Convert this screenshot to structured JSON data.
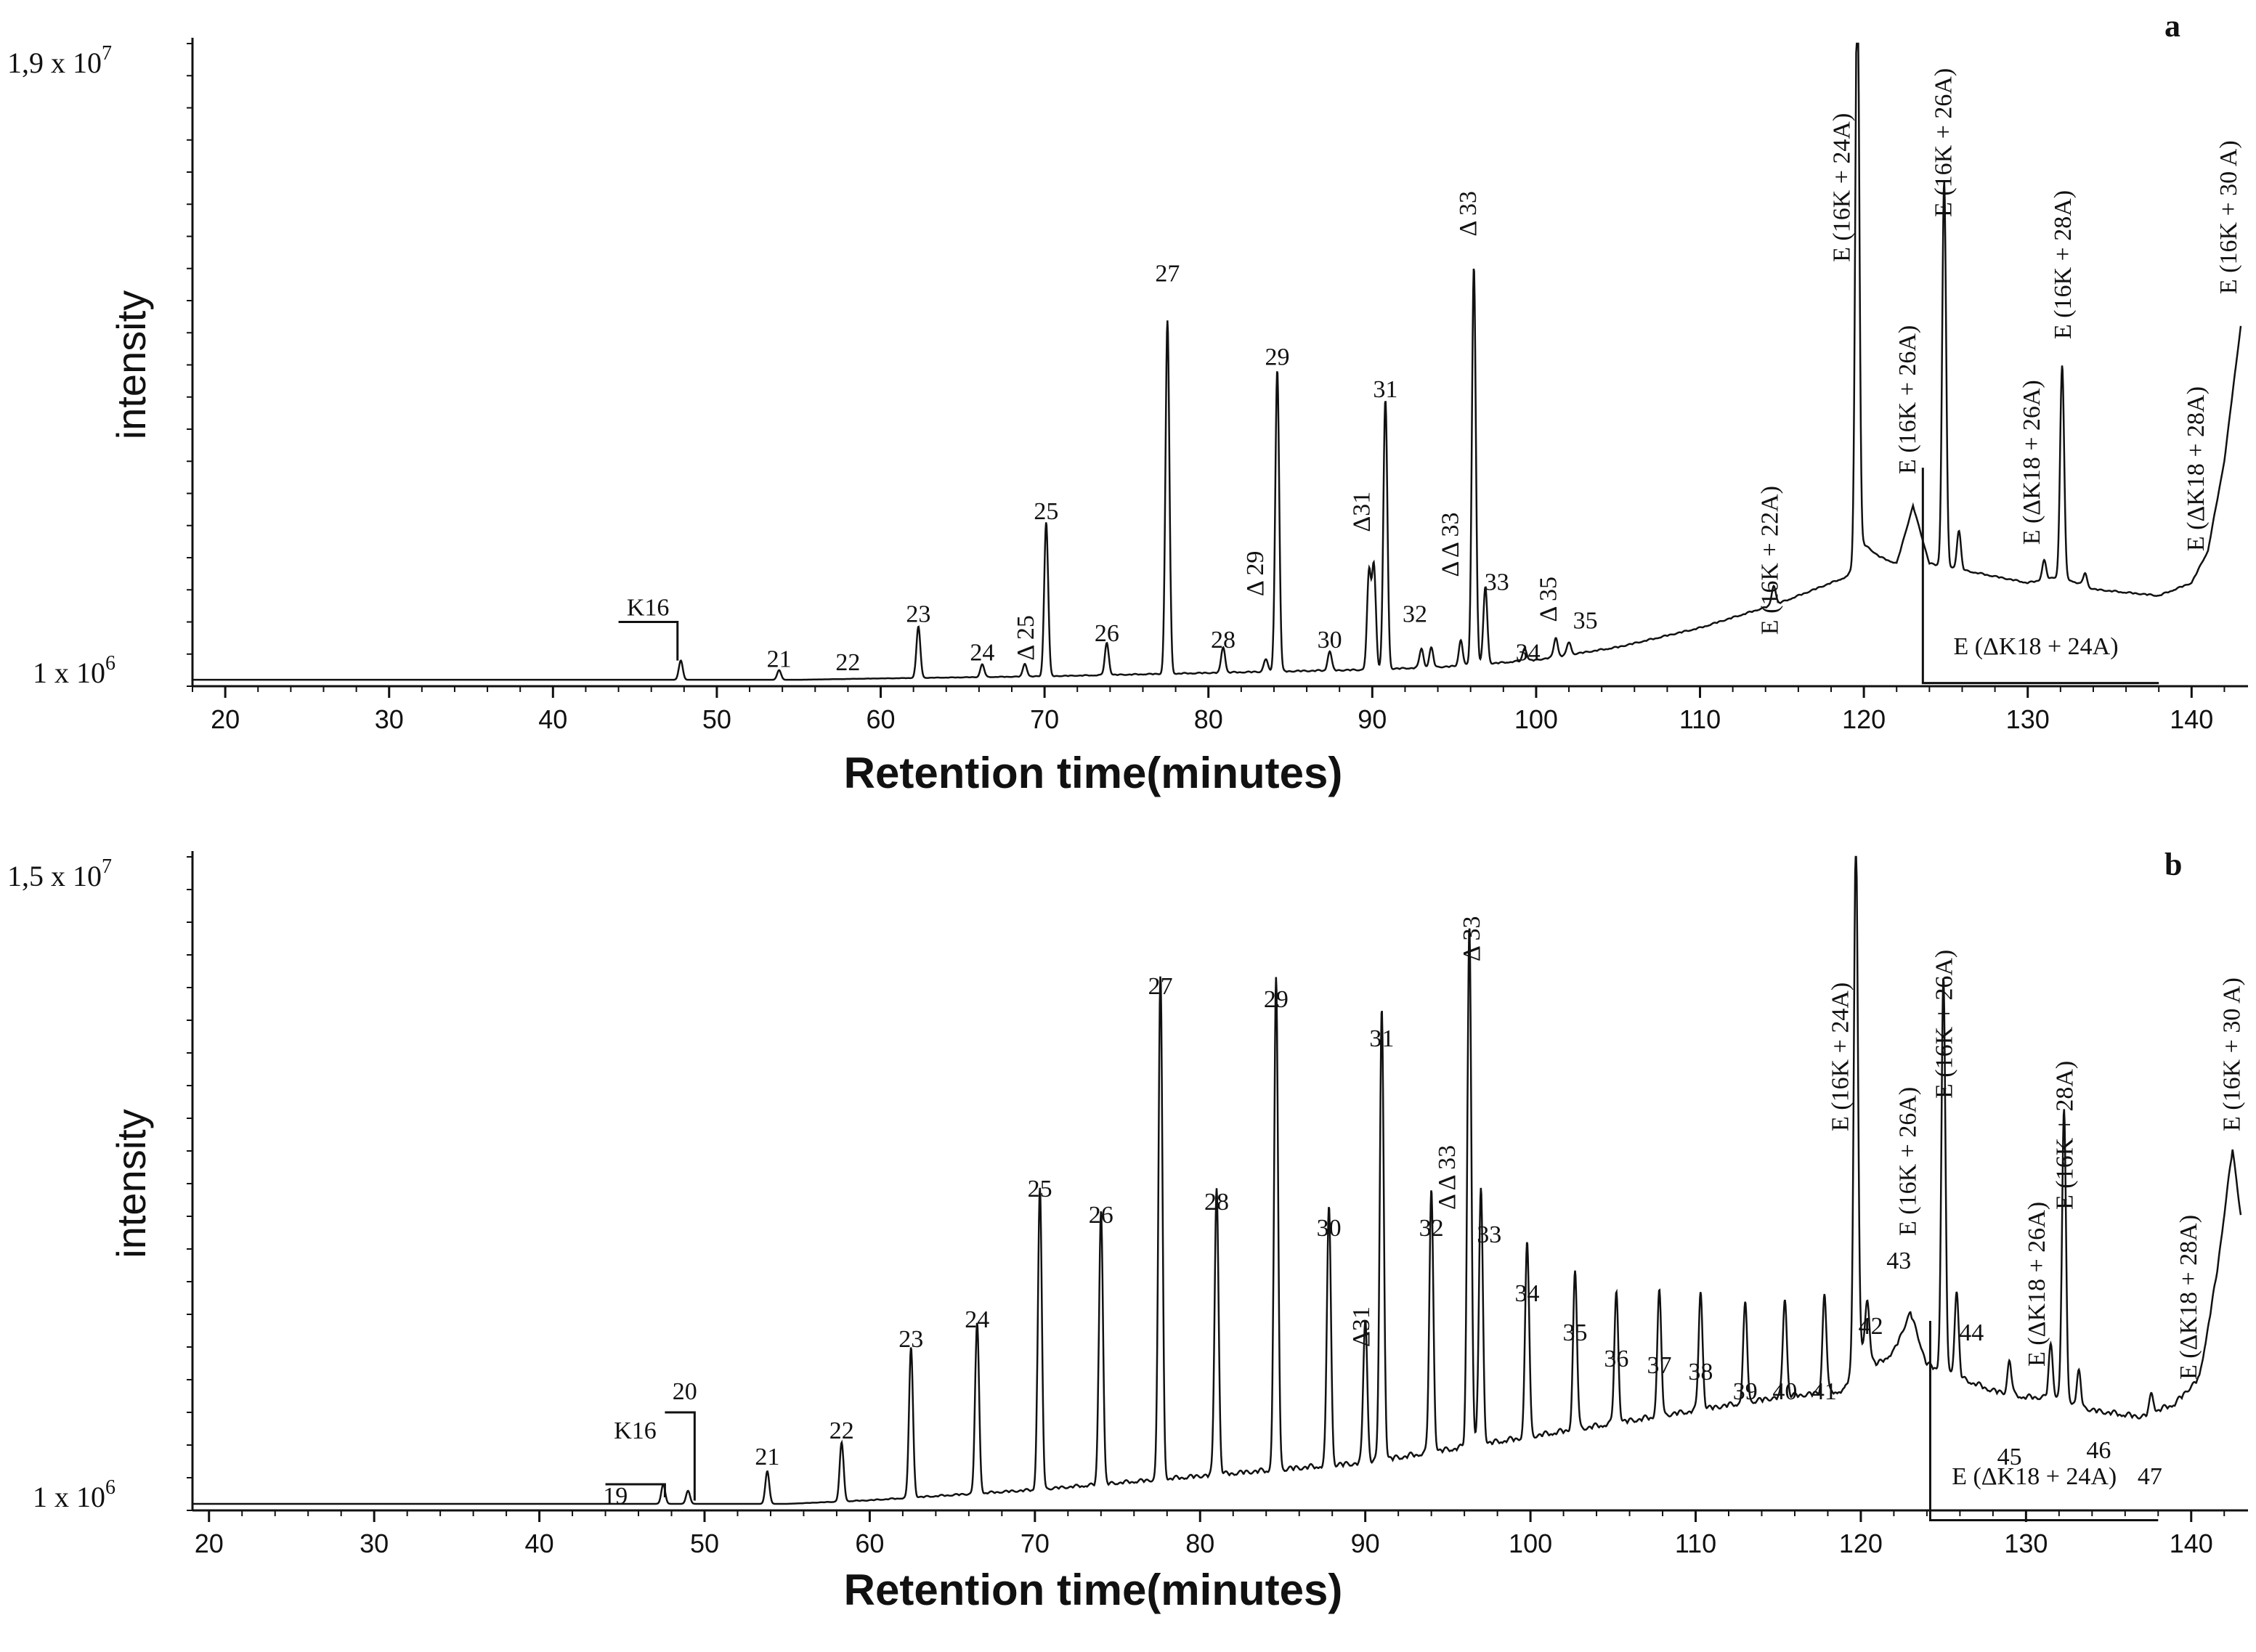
{
  "chart_data": [
    {
      "type": "line",
      "panel_letter": "a",
      "xlabel": "Retention time(minutes)",
      "ylabel": "intensity",
      "y_top_label": "1,9 x 10",
      "y_top_exp": "7",
      "y_bottom_label": "1 x 10",
      "y_bottom_exp": "6",
      "xlim": [
        18,
        143
      ],
      "ylim": [
        0,
        100
      ],
      "xticks": [
        "20",
        "30",
        "40",
        "50",
        "60",
        "70",
        "80",
        "90",
        "100",
        "110",
        "120",
        "130",
        "140"
      ],
      "baseline": [
        [
          18,
          1
        ],
        [
          55,
          1
        ],
        [
          60,
          1.2
        ],
        [
          70,
          1.5
        ],
        [
          80,
          2
        ],
        [
          90,
          2.5
        ],
        [
          95,
          3
        ],
        [
          100,
          4
        ],
        [
          105,
          6
        ],
        [
          110,
          9
        ],
        [
          115,
          13
        ],
        [
          119,
          17
        ],
        [
          120,
          22
        ],
        [
          121,
          20
        ],
        [
          122,
          19
        ],
        [
          123,
          28
        ],
        [
          124,
          19
        ],
        [
          126,
          18
        ],
        [
          128,
          17
        ],
        [
          130,
          16
        ],
        [
          132,
          17
        ],
        [
          134,
          15
        ],
        [
          138,
          14
        ],
        [
          140,
          16
        ],
        [
          141,
          21
        ],
        [
          142,
          35
        ],
        [
          143,
          56
        ]
      ],
      "peaks": [
        {
          "x": 47.8,
          "h": 3
        },
        {
          "x": 53.8,
          "h": 1.5
        },
        {
          "x": 62.3,
          "h": 8
        },
        {
          "x": 66.2,
          "h": 2
        },
        {
          "x": 68.8,
          "h": 2
        },
        {
          "x": 70.1,
          "h": 24
        },
        {
          "x": 73.8,
          "h": 5
        },
        {
          "x": 77.5,
          "h": 55
        },
        {
          "x": 80.9,
          "h": 4
        },
        {
          "x": 83.5,
          "h": 2
        },
        {
          "x": 84.2,
          "h": 47
        },
        {
          "x": 87.4,
          "h": 3
        },
        {
          "x": 89.8,
          "h": 15
        },
        {
          "x": 90.1,
          "h": 16
        },
        {
          "x": 90.8,
          "h": 42
        },
        {
          "x": 93,
          "h": 3
        },
        {
          "x": 93.6,
          "h": 3
        },
        {
          "x": 95.4,
          "h": 4
        },
        {
          "x": 96.2,
          "h": 62
        },
        {
          "x": 96.9,
          "h": 12
        },
        {
          "x": 99.3,
          "h": 2
        },
        {
          "x": 101.2,
          "h": 3
        },
        {
          "x": 102,
          "h": 2
        },
        {
          "x": 114.5,
          "h": 3
        },
        {
          "x": 119.6,
          "h": 93
        },
        {
          "x": 124.9,
          "h": 60
        },
        {
          "x": 125.8,
          "h": 6
        },
        {
          "x": 131,
          "h": 3
        },
        {
          "x": 132.1,
          "h": 33
        },
        {
          "x": 133.5,
          "h": 2
        }
      ],
      "labels": [
        {
          "text": "21",
          "x": 53.8,
          "ypct": 3,
          "rotate": false
        },
        {
          "text": "22",
          "x": 58,
          "ypct": 2.5,
          "rotate": false
        },
        {
          "text": "23",
          "x": 62.3,
          "ypct": 10,
          "rotate": false
        },
        {
          "text": "24",
          "x": 66.2,
          "ypct": 4,
          "rotate": false
        },
        {
          "text": "Δ 25",
          "x": 68.8,
          "ypct": 4,
          "rotate": true
        },
        {
          "text": "25",
          "x": 70.1,
          "ypct": 26,
          "rotate": false
        },
        {
          "text": "26",
          "x": 73.8,
          "ypct": 7,
          "rotate": false
        },
        {
          "text": "27",
          "x": 77.5,
          "ypct": 63,
          "rotate": false
        },
        {
          "text": "28",
          "x": 80.9,
          "ypct": 6,
          "rotate": false
        },
        {
          "text": "Δ 29",
          "x": 82.8,
          "ypct": 14,
          "rotate": true
        },
        {
          "text": "29",
          "x": 84.2,
          "ypct": 50,
          "rotate": false
        },
        {
          "text": "30",
          "x": 87.4,
          "ypct": 6,
          "rotate": false
        },
        {
          "text": "Δ31",
          "x": 89.3,
          "ypct": 24,
          "rotate": true
        },
        {
          "text": "31",
          "x": 90.8,
          "ypct": 45,
          "rotate": false
        },
        {
          "text": "32",
          "x": 92.6,
          "ypct": 10,
          "rotate": false
        },
        {
          "text": "Δ Δ 33",
          "x": 94.7,
          "ypct": 17,
          "rotate": true
        },
        {
          "text": "Δ 33",
          "x": 95.8,
          "ypct": 70,
          "rotate": true
        },
        {
          "text": "33",
          "x": 97.6,
          "ypct": 15,
          "rotate": false
        },
        {
          "text": "34",
          "x": 99.5,
          "ypct": 4,
          "rotate": false
        },
        {
          "text": "Δ 35",
          "x": 100.7,
          "ypct": 10,
          "rotate": true
        },
        {
          "text": "35",
          "x": 103,
          "ypct": 9,
          "rotate": false
        },
        {
          "text": "E (16K + 22A)",
          "x": 114.2,
          "ypct": 8,
          "rotate": true
        },
        {
          "text": "E (16K + 24A)",
          "x": 118.6,
          "ypct": 66,
          "rotate": true
        },
        {
          "text": "E (16K + 26A)",
          "x": 122.6,
          "ypct": 33,
          "rotate": true
        },
        {
          "text": "E (16K + 26A)",
          "x": 124.8,
          "ypct": 73,
          "rotate": true
        },
        {
          "text": "E (ΔK18 + 26A)",
          "x": 130.2,
          "ypct": 22,
          "rotate": true
        },
        {
          "text": "E (16K + 28A)",
          "x": 132.1,
          "ypct": 54,
          "rotate": true
        },
        {
          "text": "E (ΔK18 + 28A)",
          "x": 140.2,
          "ypct": 21,
          "rotate": true
        },
        {
          "text": "E (16K + 30 A)",
          "x": 142.2,
          "ypct": 61,
          "rotate": true
        },
        {
          "text": "K16",
          "x": 45.8,
          "ypct": 11,
          "rotate": false
        },
        {
          "text": "E (ΔK18 + 24A)",
          "x": 130.5,
          "ypct": 5,
          "rotate": false
        }
      ]
    },
    {
      "type": "line",
      "panel_letter": "b",
      "xlabel": "Retention time(minutes)",
      "ylabel": "intensity",
      "y_top_label": "1,5 x 10",
      "y_top_exp": "7",
      "y_bottom_label": "1 x 10",
      "y_bottom_exp": "6",
      "xlim": [
        19,
        143
      ],
      "ylim": [
        0,
        100
      ],
      "xticks": [
        "20",
        "30",
        "40",
        "50",
        "60",
        "70",
        "80",
        "90",
        "100",
        "110",
        "120",
        "130",
        "140"
      ],
      "baseline": [
        [
          19,
          1
        ],
        [
          55,
          1
        ],
        [
          60,
          1.5
        ],
        [
          70,
          3
        ],
        [
          80,
          5
        ],
        [
          90,
          7
        ],
        [
          95,
          9
        ],
        [
          100,
          11
        ],
        [
          105,
          13
        ],
        [
          110,
          15
        ],
        [
          115,
          17
        ],
        [
          119,
          18
        ],
        [
          120,
          25
        ],
        [
          121,
          22
        ],
        [
          122,
          24
        ],
        [
          123,
          30
        ],
        [
          124,
          22
        ],
        [
          126,
          20
        ],
        [
          128,
          18
        ],
        [
          130,
          17
        ],
        [
          132,
          17
        ],
        [
          134,
          15
        ],
        [
          137,
          14
        ],
        [
          139,
          16
        ],
        [
          140.5,
          20
        ],
        [
          141.5,
          35
        ],
        [
          142.5,
          55
        ],
        [
          143,
          45
        ]
      ],
      "peaks": [
        {
          "x": 47.5,
          "h": 3
        },
        {
          "x": 49,
          "h": 2
        },
        {
          "x": 53.8,
          "h": 5
        },
        {
          "x": 58.3,
          "h": 9
        },
        {
          "x": 62.5,
          "h": 23
        },
        {
          "x": 66.5,
          "h": 26
        },
        {
          "x": 70.3,
          "h": 46
        },
        {
          "x": 74,
          "h": 42
        },
        {
          "x": 77.6,
          "h": 77
        },
        {
          "x": 81,
          "h": 44
        },
        {
          "x": 84.6,
          "h": 75
        },
        {
          "x": 87.8,
          "h": 40
        },
        {
          "x": 90,
          "h": 22
        },
        {
          "x": 91,
          "h": 69
        },
        {
          "x": 94,
          "h": 40
        },
        {
          "x": 96.3,
          "h": 80
        },
        {
          "x": 97,
          "h": 39
        },
        {
          "x": 99.8,
          "h": 30
        },
        {
          "x": 102.7,
          "h": 24
        },
        {
          "x": 105.2,
          "h": 20
        },
        {
          "x": 107.8,
          "h": 19
        },
        {
          "x": 110.3,
          "h": 18
        },
        {
          "x": 113,
          "h": 15
        },
        {
          "x": 115.4,
          "h": 15
        },
        {
          "x": 117.8,
          "h": 15
        },
        {
          "x": 119.7,
          "h": 80
        },
        {
          "x": 120.4,
          "h": 8
        },
        {
          "x": 125,
          "h": 60
        },
        {
          "x": 125.8,
          "h": 13
        },
        {
          "x": 129,
          "h": 5
        },
        {
          "x": 131.5,
          "h": 8
        },
        {
          "x": 132.3,
          "h": 44
        },
        {
          "x": 133.2,
          "h": 5
        },
        {
          "x": 137.6,
          "h": 3
        }
      ],
      "labels": [
        {
          "text": "19",
          "x": 44.6,
          "ypct": 1,
          "rotate": false
        },
        {
          "text": "K16",
          "x": 45.8,
          "ypct": 11,
          "rotate": false
        },
        {
          "text": "20",
          "x": 48.8,
          "ypct": 17,
          "rotate": false
        },
        {
          "text": "21",
          "x": 53.8,
          "ypct": 7,
          "rotate": false
        },
        {
          "text": "22",
          "x": 58.3,
          "ypct": 11,
          "rotate": false
        },
        {
          "text": "23",
          "x": 62.5,
          "ypct": 25,
          "rotate": false
        },
        {
          "text": "24",
          "x": 66.5,
          "ypct": 28,
          "rotate": false
        },
        {
          "text": "25",
          "x": 70.3,
          "ypct": 48,
          "rotate": false
        },
        {
          "text": "26",
          "x": 74,
          "ypct": 44,
          "rotate": false
        },
        {
          "text": "27",
          "x": 77.6,
          "ypct": 79,
          "rotate": false
        },
        {
          "text": "28",
          "x": 81,
          "ypct": 46,
          "rotate": false
        },
        {
          "text": "29",
          "x": 84.6,
          "ypct": 77,
          "rotate": false
        },
        {
          "text": "30",
          "x": 87.8,
          "ypct": 42,
          "rotate": false
        },
        {
          "text": "Δ31",
          "x": 89.7,
          "ypct": 25,
          "rotate": true
        },
        {
          "text": "31",
          "x": 91,
          "ypct": 71,
          "rotate": false
        },
        {
          "text": "32",
          "x": 94,
          "ypct": 42,
          "rotate": false
        },
        {
          "text": "Δ Δ 33",
          "x": 94.9,
          "ypct": 46,
          "rotate": true
        },
        {
          "text": "Δ 33",
          "x": 96.4,
          "ypct": 84,
          "rotate": true
        },
        {
          "text": "33",
          "x": 97.5,
          "ypct": 41,
          "rotate": false
        },
        {
          "text": "34",
          "x": 99.8,
          "ypct": 32,
          "rotate": false
        },
        {
          "text": "35",
          "x": 102.7,
          "ypct": 26,
          "rotate": false
        },
        {
          "text": "36",
          "x": 105.2,
          "ypct": 22,
          "rotate": false
        },
        {
          "text": "37",
          "x": 107.8,
          "ypct": 21,
          "rotate": false
        },
        {
          "text": "38",
          "x": 110.3,
          "ypct": 20,
          "rotate": false
        },
        {
          "text": "39",
          "x": 113,
          "ypct": 17,
          "rotate": false
        },
        {
          "text": "40",
          "x": 115.4,
          "ypct": 17,
          "rotate": false
        },
        {
          "text": "41",
          "x": 117.8,
          "ypct": 17,
          "rotate": false
        },
        {
          "text": "E (16K + 24A)",
          "x": 118.7,
          "ypct": 58,
          "rotate": true
        },
        {
          "text": "42",
          "x": 120.6,
          "ypct": 27,
          "rotate": false
        },
        {
          "text": "43",
          "x": 122.3,
          "ypct": 37,
          "rotate": false
        },
        {
          "text": "E (16K + 26A)",
          "x": 122.8,
          "ypct": 42,
          "rotate": true
        },
        {
          "text": "E (16K + 26A)",
          "x": 125,
          "ypct": 63,
          "rotate": true
        },
        {
          "text": "44",
          "x": 126.7,
          "ypct": 26,
          "rotate": false
        },
        {
          "text": "45",
          "x": 129,
          "ypct": 7,
          "rotate": false
        },
        {
          "text": "E (ΔK18 + 26A)",
          "x": 130.6,
          "ypct": 22,
          "rotate": true
        },
        {
          "text": "E (16K + 28A)",
          "x": 132.3,
          "ypct": 46,
          "rotate": true
        },
        {
          "text": "46",
          "x": 134.4,
          "ypct": 8,
          "rotate": false
        },
        {
          "text": "47",
          "x": 137.5,
          "ypct": 4,
          "rotate": false
        },
        {
          "text": "E (ΔK18 + 28A)",
          "x": 139.8,
          "ypct": 20,
          "rotate": true
        },
        {
          "text": "E (16K + 30 A)",
          "x": 142.4,
          "ypct": 58,
          "rotate": true
        },
        {
          "text": "E (ΔK18 + 24A)",
          "x": 130.5,
          "ypct": 4,
          "rotate": false
        }
      ]
    }
  ]
}
